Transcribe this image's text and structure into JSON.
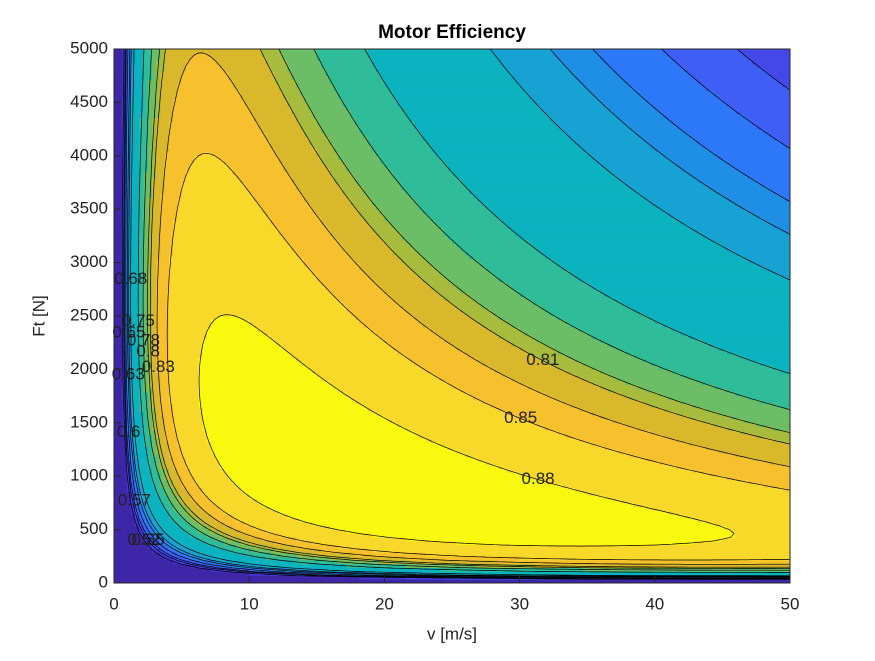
{
  "chart_data": {
    "type": "contour",
    "title": "Motor Efficiency",
    "x_label": "v [m/s]",
    "y_label": "Ft [N]",
    "xlim": [
      0,
      50
    ],
    "xticks": [
      0,
      10,
      20,
      30,
      40,
      50
    ],
    "ylim": [
      0,
      5000
    ],
    "yticks": [
      0,
      500,
      1000,
      1500,
      2000,
      2500,
      3000,
      3500,
      4000,
      4500,
      5000
    ],
    "levels": [
      0.52,
      0.55,
      0.57,
      0.6,
      0.63,
      0.65,
      0.68,
      0.75,
      0.78,
      0.8,
      0.81,
      0.83,
      0.85,
      0.88
    ],
    "colors": [
      "#3e26a8",
      "#4335d4",
      "#4548e8",
      "#3f5ef6",
      "#2c78f8",
      "#1f8fe5",
      "#16a3d3",
      "#0bb3bf",
      "#2ebd98",
      "#6cbe66",
      "#a7bb3d",
      "#d9b92b",
      "#f6c12c",
      "#f8d92a",
      "#f9f90f"
    ]
  }
}
